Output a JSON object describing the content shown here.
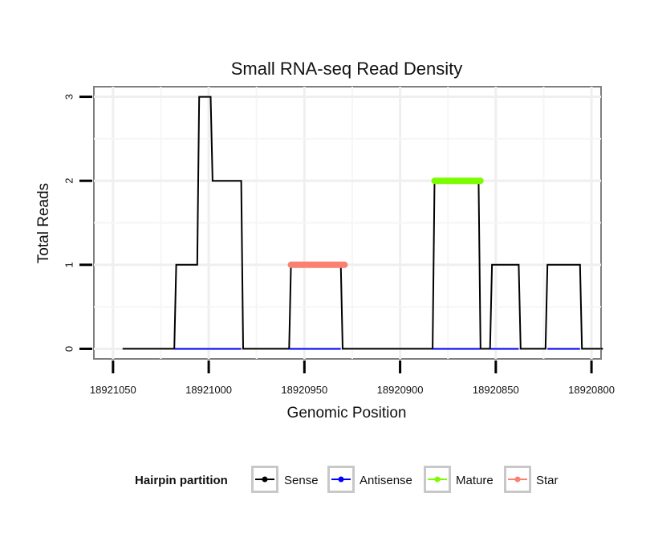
{
  "chart_data": {
    "type": "line",
    "title": "Small RNA-seq Read Density",
    "xlabel": "Genomic Position",
    "ylabel": "Total Reads",
    "x_reversed": true,
    "xlim": [
      18921060,
      18920795
    ],
    "ylim": [
      -0.12,
      3.12
    ],
    "x_ticks": [
      18921050,
      18921000,
      18920950,
      18920900,
      18920850,
      18920800
    ],
    "x_tick_labels": [
      "18921050",
      "18921000",
      "18920950",
      "18920900",
      "18920850",
      "18920800"
    ],
    "y_ticks": [
      0,
      1,
      2,
      3
    ],
    "y_tick_labels": [
      "0",
      "1",
      "2",
      "3"
    ],
    "grid": true,
    "legend": {
      "title": "Hairpin partition",
      "position": "bottom"
    },
    "series": [
      {
        "name": "Sense",
        "color": "#000000",
        "width": 2,
        "points": [
          [
            18921045,
            0
          ],
          [
            18921018,
            0
          ],
          [
            18921017,
            1
          ],
          [
            18921006,
            1
          ],
          [
            18921005,
            3
          ],
          [
            18920999,
            3
          ],
          [
            18920998,
            2
          ],
          [
            18920983,
            2
          ],
          [
            18920982,
            0
          ],
          [
            18920958,
            0
          ],
          [
            18920957,
            1
          ],
          [
            18920931,
            1
          ],
          [
            18920930,
            0
          ],
          [
            18920883,
            0
          ],
          [
            18920882,
            2
          ],
          [
            18920859,
            2
          ],
          [
            18920858,
            0
          ],
          [
            18920853,
            0
          ],
          [
            18920852,
            1
          ],
          [
            18920838,
            1
          ],
          [
            18920837,
            0
          ],
          [
            18920824,
            0
          ],
          [
            18920823,
            1
          ],
          [
            18920806,
            1
          ],
          [
            18920805,
            0
          ],
          [
            18920794,
            0
          ]
        ]
      },
      {
        "name": "Antisense",
        "color": "#0000ff",
        "width": 2,
        "points": [
          [
            18921018,
            0
          ],
          [
            18920983,
            0
          ],
          [
            18920958,
            0
          ],
          [
            18920931,
            0
          ],
          [
            18920883,
            0
          ],
          [
            18920858,
            0
          ],
          [
            18920853,
            0
          ],
          [
            18920838,
            0
          ],
          [
            18920823,
            0
          ],
          [
            18920806,
            0
          ]
        ]
      },
      {
        "name": "Mature",
        "color": "#7cfc00",
        "width": 8,
        "points": [
          [
            18920882,
            2
          ],
          [
            18920858,
            2
          ]
        ]
      },
      {
        "name": "Star",
        "color": "#fa8072",
        "width": 8,
        "points": [
          [
            18920957,
            1
          ],
          [
            18920929,
            1
          ]
        ]
      }
    ]
  }
}
